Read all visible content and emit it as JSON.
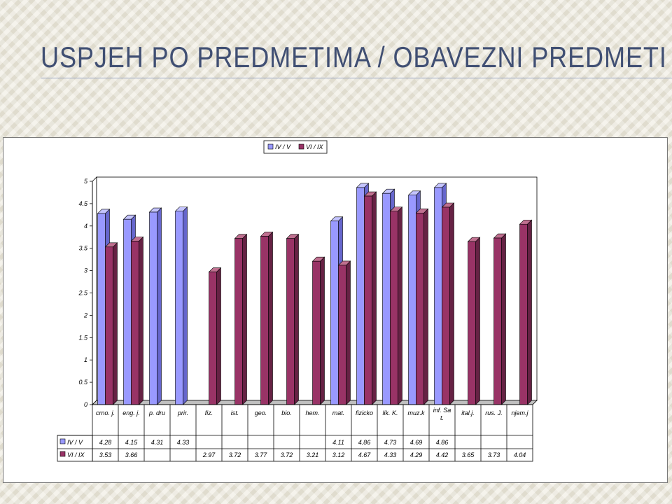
{
  "slide": {
    "title": "Uspjeh po predmetima / obavezni predmeti"
  },
  "colors": {
    "series1": "#9999ff",
    "series2": "#993366"
  },
  "chart_data": {
    "type": "bar",
    "title": "",
    "xlabel": "",
    "ylabel": "",
    "ylim": [
      0,
      5
    ],
    "yticks": [
      0,
      0.5,
      1,
      1.5,
      2,
      2.5,
      3,
      3.5,
      4,
      4.5,
      5
    ],
    "grid": false,
    "legend": "top-center",
    "data_table": true,
    "categories": [
      "crno. j.",
      "eng. j.",
      "p. dru",
      "prir.",
      "fiz.",
      "ist.",
      "geo.",
      "bio.",
      "hem.",
      "mat.",
      "fizicko",
      "lik. K.",
      "muz.k",
      "inf. Sa t.",
      "ital.j.",
      "rus. J.",
      "njem.j"
    ],
    "series": [
      {
        "name": "IV / V",
        "values": [
          4.28,
          4.15,
          4.31,
          4.33,
          null,
          null,
          null,
          null,
          null,
          4.11,
          4.86,
          4.73,
          4.69,
          4.86,
          null,
          null,
          null
        ]
      },
      {
        "name": "VI / IX",
        "values": [
          3.53,
          3.66,
          null,
          null,
          2.97,
          3.72,
          3.77,
          3.72,
          3.21,
          3.12,
          4.67,
          4.33,
          4.29,
          4.42,
          3.65,
          3.73,
          4.04
        ]
      }
    ]
  }
}
